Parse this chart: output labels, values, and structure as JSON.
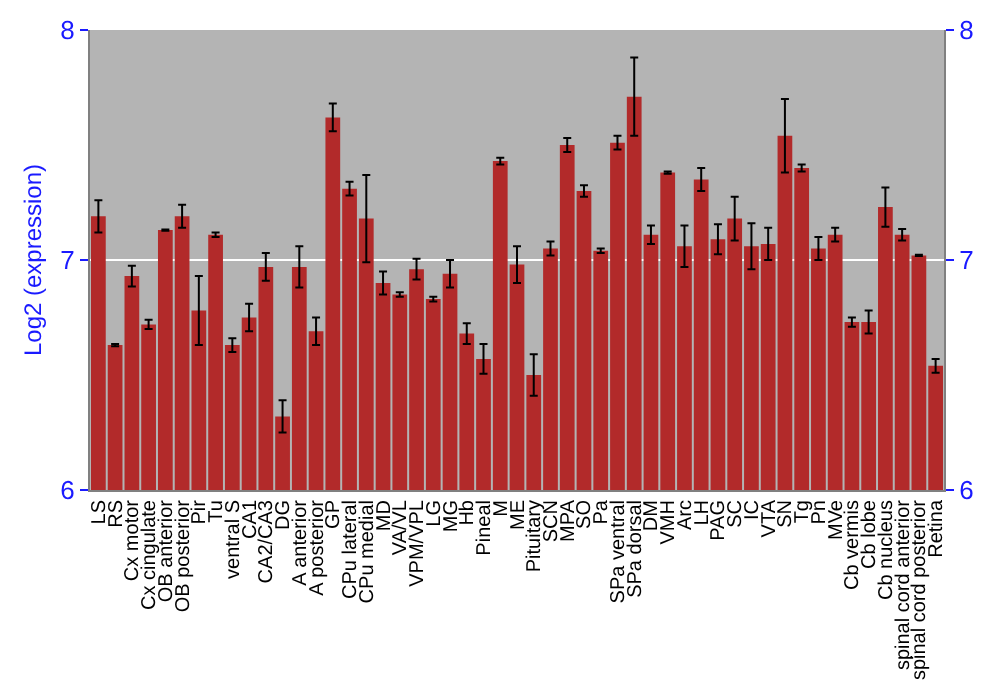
{
  "chart_data": {
    "type": "bar",
    "ylabel": "Log2 (expression)",
    "categories": [
      "LS",
      "RS",
      "Cx motor",
      "Cx cingulate",
      "OB anterior",
      "OB posterior",
      "Pir",
      "Tu",
      "ventral S",
      "CA1",
      "CA2/CA3",
      "DG",
      "A anterior",
      "A posterior",
      "GP",
      "CPu lateral",
      "CPu medial",
      "MD",
      "VA/VL",
      "VPM/VPL",
      "LG",
      "MG",
      "Hb",
      "Pineal",
      "M",
      "ME",
      "Pituitary",
      "SCN",
      "MPA",
      "SO",
      "Pa",
      "SPa ventral",
      "SPa dorsal",
      "DM",
      "VMH",
      "Arc",
      "LH",
      "PAG",
      "SC",
      "IC",
      "VTA",
      "SN",
      "Tg",
      "Pn",
      "MVe",
      "Cb vermis",
      "Cb lobe",
      "Cb nucleus",
      "spinal cord anterior",
      "spinal cord posterior",
      "Retina"
    ],
    "values": [
      7.19,
      6.63,
      6.93,
      6.72,
      7.13,
      7.19,
      6.78,
      7.11,
      6.63,
      6.75,
      6.97,
      6.32,
      6.97,
      6.69,
      7.62,
      7.31,
      7.18,
      6.9,
      6.85,
      6.96,
      6.83,
      6.94,
      6.68,
      6.57,
      7.43,
      6.98,
      6.5,
      7.05,
      7.5,
      7.3,
      7.04,
      7.51,
      7.71,
      7.11,
      7.38,
      7.06,
      7.35,
      7.09,
      7.18,
      7.06,
      7.07,
      7.54,
      7.4,
      7.05,
      7.11,
      6.73,
      6.73,
      7.23,
      7.11,
      7.02,
      6.54
    ],
    "errors": [
      0.07,
      0.005,
      0.045,
      0.02,
      0.003,
      0.05,
      0.15,
      0.01,
      0.03,
      0.06,
      0.06,
      0.07,
      0.09,
      0.06,
      0.06,
      0.03,
      0.19,
      0.05,
      0.01,
      0.045,
      0.01,
      0.06,
      0.045,
      0.065,
      0.015,
      0.08,
      0.09,
      0.03,
      0.03,
      0.025,
      0.01,
      0.03,
      0.17,
      0.04,
      0.005,
      0.09,
      0.05,
      0.065,
      0.095,
      0.1,
      0.07,
      0.16,
      0.015,
      0.05,
      0.03,
      0.02,
      0.05,
      0.085,
      0.025,
      0.003,
      0.03
    ],
    "color": "#b22a2a",
    "ylim": [
      6,
      8
    ],
    "yticks": [
      6,
      7,
      8
    ],
    "y2lim": [
      6,
      8
    ],
    "y2ticks": [
      6,
      7,
      8
    ],
    "grid": "y"
  }
}
